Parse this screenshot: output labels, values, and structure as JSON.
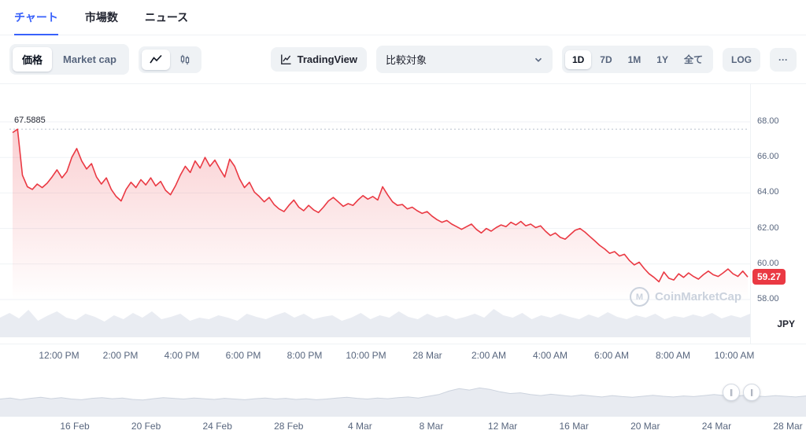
{
  "tabs": [
    {
      "label": "チャート",
      "active": true
    },
    {
      "label": "市場数",
      "active": false
    },
    {
      "label": "ニュース",
      "active": false
    }
  ],
  "toolbar": {
    "price_label": "価格",
    "marketcap_label": "Market cap",
    "tradingview_label": "TradingView",
    "compare_label": "比較対象",
    "ranges": [
      "1D",
      "7D",
      "1M",
      "1Y",
      "全て"
    ],
    "active_range": "1D",
    "log_label": "LOG",
    "more_label": "···"
  },
  "chart": {
    "max_annotation": "67.5885",
    "current_price": "59.27",
    "currency_label": "JPY",
    "watermark": "CoinMarketCap",
    "watermark_logo_letter": "M"
  },
  "navigator": {
    "handle_glyph": "∥"
  },
  "colors": {
    "accent_blue": "#3861fb",
    "line_red": "#ea3943",
    "button_gray": "#eff2f5",
    "text_gray": "#58667e",
    "text_dark": "#0d1421",
    "grid": "#eff2f5",
    "watermark": "#cbd2dd",
    "volume_fill": "#e9ecf2",
    "navigator_fill": "#e8ebf1",
    "navigator_line": "#ccd3de"
  },
  "chart_data": {
    "type": "line",
    "ylabel": "Price (JPY)",
    "ylim": [
      57.5,
      68.3
    ],
    "y_ticks": [
      68,
      66,
      64,
      62,
      60,
      58
    ],
    "y_tick_labels": [
      "68.00",
      "66.00",
      "64.00",
      "62.00",
      "60.00",
      "58.00"
    ],
    "x_tick_labels": [
      "12:00 PM",
      "2:00 PM",
      "4:00 PM",
      "6:00 PM",
      "8:00 PM",
      "10:00 PM",
      "28 Mar",
      "2:00 AM",
      "4:00 AM",
      "6:00 AM",
      "8:00 AM",
      "10:00 AM"
    ],
    "max_price": 67.5885,
    "last_price": 59.27,
    "grid": true,
    "legend": false,
    "series": [
      {
        "name": "price_jpy",
        "values": [
          67.4,
          67.59,
          65.0,
          64.35,
          64.2,
          64.5,
          64.3,
          64.55,
          64.9,
          65.3,
          64.85,
          65.2,
          66.0,
          66.5,
          65.8,
          65.35,
          65.65,
          64.9,
          64.5,
          64.85,
          64.2,
          63.8,
          63.55,
          64.2,
          64.6,
          64.3,
          64.75,
          64.45,
          64.85,
          64.4,
          64.65,
          64.15,
          63.9,
          64.4,
          65.0,
          65.5,
          65.15,
          65.8,
          65.4,
          66.0,
          65.5,
          65.85,
          65.35,
          64.9,
          65.9,
          65.5,
          64.8,
          64.3,
          64.6,
          64.05,
          63.8,
          63.5,
          63.75,
          63.35,
          63.1,
          62.95,
          63.3,
          63.6,
          63.2,
          63.0,
          63.3,
          63.05,
          62.9,
          63.2,
          63.55,
          63.75,
          63.5,
          63.25,
          63.4,
          63.3,
          63.6,
          63.85,
          63.65,
          63.8,
          63.6,
          64.35,
          63.9,
          63.5,
          63.3,
          63.35,
          63.1,
          63.2,
          63.0,
          62.85,
          62.95,
          62.7,
          62.5,
          62.35,
          62.45,
          62.25,
          62.1,
          61.95,
          62.1,
          62.25,
          61.95,
          61.75,
          62.0,
          61.85,
          62.05,
          62.2,
          62.1,
          62.35,
          62.2,
          62.4,
          62.15,
          62.25,
          62.05,
          62.15,
          61.85,
          61.6,
          61.75,
          61.5,
          61.4,
          61.65,
          61.9,
          62.0,
          61.8,
          61.55,
          61.3,
          61.05,
          60.85,
          60.6,
          60.7,
          60.45,
          60.55,
          60.2,
          59.95,
          60.1,
          59.75,
          59.45,
          59.25,
          59.0,
          59.55,
          59.2,
          59.1,
          59.45,
          59.25,
          59.5,
          59.3,
          59.15,
          59.4,
          59.6,
          59.4,
          59.3,
          59.5,
          59.72,
          59.45,
          59.3,
          59.6,
          59.27
        ]
      }
    ],
    "volume_relative": [
      0.5,
      0.62,
      0.48,
      0.7,
      0.42,
      0.55,
      0.66,
      0.5,
      0.44,
      0.6,
      0.52,
      0.4,
      0.56,
      0.46,
      0.62,
      0.5,
      0.66,
      0.46,
      0.52,
      0.6,
      0.42,
      0.5,
      0.46,
      0.56,
      0.5,
      0.42,
      0.6,
      0.52,
      0.46,
      0.56,
      0.64,
      0.5,
      0.6,
      0.46,
      0.52,
      0.56,
      0.42,
      0.5,
      0.62,
      0.46,
      0.56,
      0.5,
      0.66,
      0.52,
      0.46,
      0.6,
      0.5,
      0.56,
      0.46,
      0.52,
      0.6,
      0.5,
      0.72,
      0.56,
      0.5,
      0.62,
      0.46,
      0.56,
      0.5,
      0.6,
      0.52,
      0.46,
      0.58,
      0.5,
      0.64,
      0.52,
      0.46,
      0.56,
      0.5,
      0.6,
      0.46,
      0.54,
      0.5,
      0.58,
      0.52,
      0.62,
      0.48,
      0.56,
      0.5,
      0.6
    ],
    "navigator": {
      "x_tick_labels": [
        "16 Feb",
        "20 Feb",
        "24 Feb",
        "28 Feb",
        "4 Mar",
        "8 Mar",
        "12 Mar",
        "16 Mar",
        "20 Mar",
        "24 Mar",
        "28 Mar"
      ],
      "values": [
        0.42,
        0.45,
        0.4,
        0.44,
        0.47,
        0.43,
        0.46,
        0.42,
        0.4,
        0.44,
        0.46,
        0.43,
        0.45,
        0.41,
        0.39,
        0.43,
        0.46,
        0.44,
        0.42,
        0.45,
        0.43,
        0.41,
        0.44,
        0.42,
        0.4,
        0.43,
        0.45,
        0.42,
        0.44,
        0.41,
        0.43,
        0.4,
        0.42,
        0.45,
        0.47,
        0.44,
        0.42,
        0.45,
        0.43,
        0.46,
        0.48,
        0.45,
        0.5,
        0.55,
        0.65,
        0.72,
        0.68,
        0.74,
        0.7,
        0.63,
        0.58,
        0.6,
        0.55,
        0.52,
        0.56,
        0.53,
        0.5,
        0.54,
        0.51,
        0.48,
        0.52,
        0.49,
        0.47,
        0.5,
        0.53,
        0.5,
        0.48,
        0.51,
        0.49,
        0.52,
        0.55,
        0.52,
        0.5,
        0.53,
        0.51,
        0.49,
        0.52,
        0.5,
        0.48,
        0.51
      ]
    }
  }
}
